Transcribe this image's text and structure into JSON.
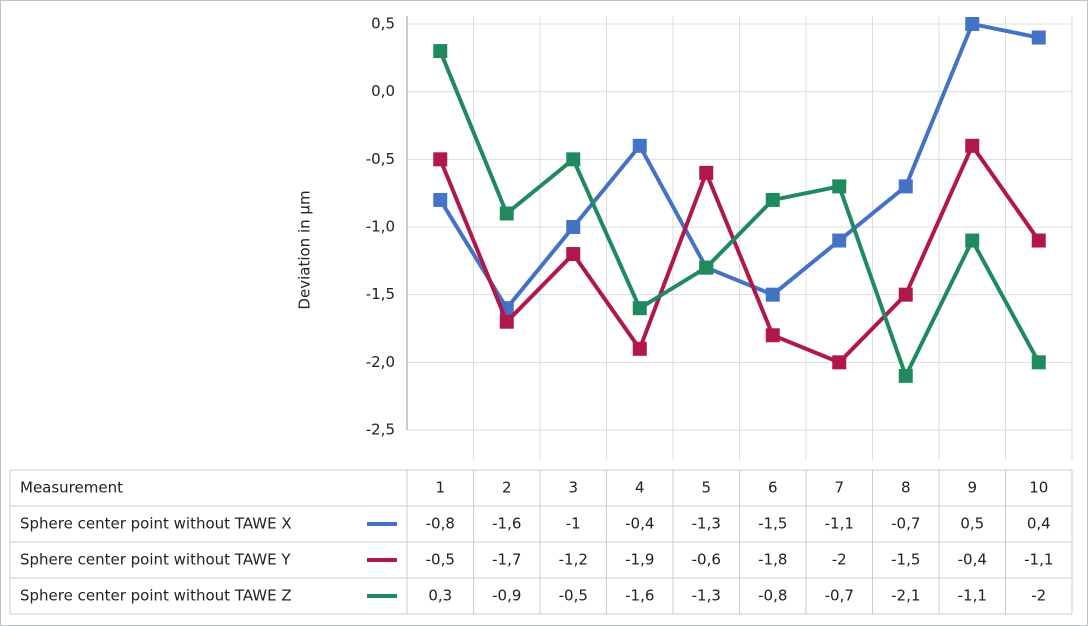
{
  "chart_data": {
    "type": "line",
    "y_label": "Deviation in µm",
    "table_header": "Measurement",
    "categories": [
      "1",
      "2",
      "3",
      "4",
      "5",
      "6",
      "7",
      "8",
      "9",
      "10"
    ],
    "series": [
      {
        "name": "Sphere center point without TAWE X",
        "color": "#4472c4",
        "values": [
          -0.8,
          -1.6,
          -1,
          -0.4,
          -1.3,
          -1.5,
          -1.1,
          -0.7,
          0.5,
          0.4
        ],
        "value_labels": [
          "-0,8",
          "-1,6",
          "-1",
          "-0,4",
          "-1,3",
          "-1,5",
          "-1,1",
          "-0,7",
          "0,5",
          "0,4"
        ]
      },
      {
        "name": "Sphere center point without TAWE Y",
        "color": "#b0174a",
        "values": [
          -0.5,
          -1.7,
          -1.2,
          -1.9,
          -0.6,
          -1.8,
          -2,
          -1.5,
          -0.4,
          -1.1
        ],
        "value_labels": [
          "-0,5",
          "-1,7",
          "-1,2",
          "-1,9",
          "-0,6",
          "-1,8",
          "-2",
          "-1,5",
          "-0,4",
          "-1,1"
        ]
      },
      {
        "name": "Sphere center point without TAWE Z",
        "color": "#1e8a5e",
        "values": [
          0.3,
          -0.9,
          -0.5,
          -1.6,
          -1.3,
          -0.8,
          -0.7,
          -2.1,
          -1.1,
          -2
        ],
        "value_labels": [
          "0,3",
          "-0,9",
          "-0,5",
          "-1,6",
          "-1,3",
          "-0,8",
          "-0,7",
          "-2,1",
          "-1,1",
          "-2"
        ]
      }
    ],
    "ylim": [
      -2.5,
      0.5
    ],
    "yticks": [
      {
        "value": -2.5,
        "label": "-2,5"
      },
      {
        "value": -2,
        "label": "-2,0"
      },
      {
        "value": -1.5,
        "label": "-1,5"
      },
      {
        "value": -1,
        "label": "-1,0"
      },
      {
        "value": -0.5,
        "label": "-0,5"
      },
      {
        "value": 0,
        "label": "0,0"
      },
      {
        "value": 0.5,
        "label": "0,5"
      }
    ],
    "grid": true
  }
}
